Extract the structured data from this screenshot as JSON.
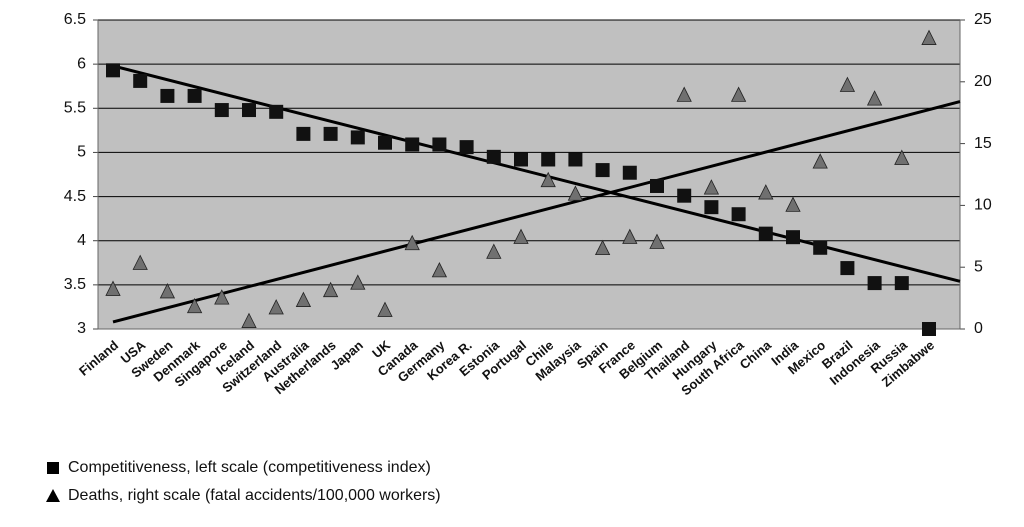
{
  "chart_data": {
    "type": "scatter-dual",
    "categories": [
      "Finland",
      "USA",
      "Sweden",
      "Denmark",
      "Singapore",
      "Iceland",
      "Switzerland",
      "Australia",
      "Netherlands",
      "Japan",
      "UK",
      "Canada",
      "Germany",
      "Korea R.",
      "Estonia",
      "Portugal",
      "Chile",
      "Malaysia",
      "Spain",
      "France",
      "Belgium",
      "Thailand",
      "Hungary",
      "South Africa",
      "China",
      "India",
      "Mexico",
      "Brazil",
      "Indonesia",
      "Russia",
      "Zimbabwe"
    ],
    "series": [
      {
        "name": "Competitiveness, left scale (competitiveness index)",
        "color": "#111111",
        "marker": "square",
        "axis": "y",
        "values": [
          5.93,
          5.81,
          5.64,
          5.64,
          5.48,
          5.48,
          5.46,
          5.21,
          5.21,
          5.17,
          5.11,
          5.09,
          5.09,
          5.06,
          4.95,
          4.92,
          4.92,
          4.92,
          4.8,
          4.77,
          4.62,
          4.51,
          4.38,
          4.3,
          4.08,
          4.04,
          3.92,
          3.69,
          3.52,
          3.52,
          3.0
        ],
        "trend": [
          5.98,
          3.54
        ]
      },
      {
        "name": "Deaths, right scale (fatal accidents/100,000 workers)",
        "color": "#707070",
        "marker": "triangle",
        "axis": "y2",
        "values": [
          3.2,
          5.3,
          3.0,
          1.8,
          2.5,
          0.6,
          1.7,
          2.3,
          3.1,
          3.7,
          1.5,
          6.9,
          4.7,
          null,
          6.2,
          7.4,
          12.0,
          10.9,
          6.5,
          7.4,
          7.0,
          18.9,
          11.4,
          18.9,
          11.0,
          10.0,
          13.5,
          19.7,
          18.6,
          13.8,
          23.5
        ],
        "trend": [
          0.57,
          18.4
        ]
      }
    ],
    "ylim": [
      3,
      6.5
    ],
    "yticks": [
      3,
      3.5,
      4,
      4.5,
      5,
      5.5,
      6,
      6.5
    ],
    "y2lim": [
      0,
      25
    ],
    "y2ticks": [
      0,
      5,
      10,
      15,
      20,
      25
    ],
    "grid": true
  }
}
